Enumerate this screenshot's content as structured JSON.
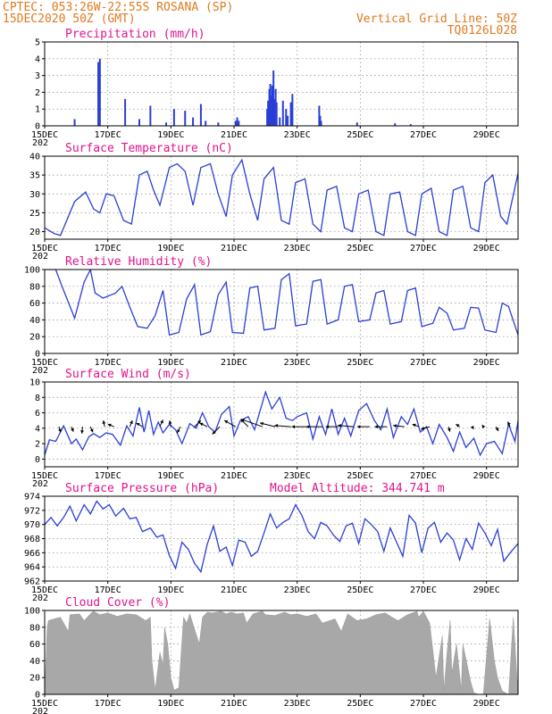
{
  "header": {
    "line1_left": "CPTEC:   053:26W-22:55S   ROSANA (SP)",
    "line2_left": "15DEC2020 50Z (GMT)",
    "line1_right": "Vertical Grid Line: 50Z",
    "line2_right": "TQ0126L028"
  },
  "colors": {
    "header": "#e07a1f",
    "title": "#e0148c",
    "line": "#2a3fd6",
    "cloud": "#a8a8a8"
  },
  "x_axis": {
    "days_total": 15,
    "tick_labels": [
      "15DEC",
      "17DEC",
      "19DEC",
      "21DEC",
      "23DEC",
      "25DEC",
      "27DEC",
      "29DEC"
    ],
    "tick_days": [
      0,
      2,
      4,
      6,
      8,
      10,
      12,
      14
    ],
    "clipped_year_label": "202"
  },
  "chart_data": [
    {
      "id": "precip",
      "type": "bar",
      "title": "Precipitation (mm/h)",
      "ylim": [
        0,
        5
      ],
      "yticks": [
        0,
        1,
        2,
        3,
        4,
        5
      ],
      "bars": [
        {
          "day": 0.95,
          "value": 0.4
        },
        {
          "day": 1.7,
          "value": 3.8
        },
        {
          "day": 1.75,
          "value": 4.0
        },
        {
          "day": 2.55,
          "value": 1.6
        },
        {
          "day": 3.0,
          "value": 0.4
        },
        {
          "day": 3.35,
          "value": 1.2
        },
        {
          "day": 3.85,
          "value": 0.2
        },
        {
          "day": 4.1,
          "value": 1.0
        },
        {
          "day": 4.45,
          "value": 0.9
        },
        {
          "day": 4.7,
          "value": 0.5
        },
        {
          "day": 4.95,
          "value": 1.3
        },
        {
          "day": 5.1,
          "value": 0.3
        },
        {
          "day": 5.5,
          "value": 0.2
        },
        {
          "day": 6.05,
          "value": 0.3
        },
        {
          "day": 6.1,
          "value": 0.5
        },
        {
          "day": 6.15,
          "value": 0.3
        },
        {
          "day": 7.05,
          "value": 1.0
        },
        {
          "day": 7.08,
          "value": 1.5
        },
        {
          "day": 7.12,
          "value": 2.2
        },
        {
          "day": 7.15,
          "value": 2.5
        },
        {
          "day": 7.18,
          "value": 1.8
        },
        {
          "day": 7.21,
          "value": 2.4
        },
        {
          "day": 7.25,
          "value": 3.3
        },
        {
          "day": 7.28,
          "value": 1.6
        },
        {
          "day": 7.32,
          "value": 2.2
        },
        {
          "day": 7.35,
          "value": 1.4
        },
        {
          "day": 7.45,
          "value": 0.5
        },
        {
          "day": 7.55,
          "value": 1.5
        },
        {
          "day": 7.65,
          "value": 1.0
        },
        {
          "day": 7.7,
          "value": 0.6
        },
        {
          "day": 7.8,
          "value": 1.4
        },
        {
          "day": 7.85,
          "value": 1.9
        },
        {
          "day": 8.7,
          "value": 1.2
        },
        {
          "day": 8.73,
          "value": 0.6
        },
        {
          "day": 8.76,
          "value": 0.3
        },
        {
          "day": 9.9,
          "value": 0.2
        },
        {
          "day": 11.1,
          "value": 0.15
        },
        {
          "day": 11.6,
          "value": 0.1
        }
      ]
    },
    {
      "id": "temp",
      "type": "line",
      "title": "Surface Temperature (nC)",
      "ylim": [
        18,
        40
      ],
      "yticks": [
        20,
        25,
        30,
        35,
        40
      ],
      "x": [
        0,
        0.3,
        0.5,
        0.95,
        1.3,
        1.55,
        1.75,
        1.95,
        2.2,
        2.5,
        2.75,
        3.0,
        3.25,
        3.45,
        3.65,
        3.95,
        4.2,
        4.45,
        4.7,
        4.95,
        5.25,
        5.5,
        5.75,
        5.95,
        6.25,
        6.5,
        6.75,
        6.95,
        7.25,
        7.5,
        7.75,
        7.95,
        8.25,
        8.5,
        8.75,
        8.95,
        9.25,
        9.5,
        9.75,
        9.95,
        10.25,
        10.5,
        10.75,
        10.95,
        11.25,
        11.5,
        11.75,
        11.95,
        12.25,
        12.5,
        12.75,
        12.95,
        13.25,
        13.5,
        13.75,
        13.95,
        14.2,
        14.45,
        14.65,
        15.0
      ],
      "y": [
        21,
        19.5,
        19,
        28,
        30.5,
        26,
        25,
        30,
        29.5,
        23,
        22,
        35,
        36,
        31,
        27,
        37,
        38,
        36,
        27,
        37,
        38,
        30,
        24,
        35,
        39,
        30,
        23,
        34,
        37,
        23,
        22,
        33,
        34,
        22,
        20,
        31,
        32,
        21,
        20,
        30,
        31,
        20,
        19,
        30,
        30.5,
        20,
        19,
        30,
        31.5,
        20,
        19,
        31,
        32,
        21,
        20,
        33,
        35,
        24,
        22,
        35.5
      ]
    },
    {
      "id": "rh",
      "type": "line",
      "title": "Relative Humidity (%)",
      "ylim": [
        0,
        100
      ],
      "yticks": [
        0,
        20,
        40,
        60,
        80,
        100
      ],
      "x": [
        0,
        0.35,
        0.55,
        0.95,
        1.25,
        1.45,
        1.6,
        1.85,
        2.25,
        2.45,
        2.7,
        2.95,
        3.25,
        3.5,
        3.75,
        3.95,
        4.25,
        4.5,
        4.75,
        4.95,
        5.25,
        5.5,
        5.75,
        5.95,
        6.3,
        6.5,
        6.75,
        6.95,
        7.3,
        7.5,
        7.75,
        7.95,
        8.3,
        8.5,
        8.75,
        8.95,
        9.3,
        9.5,
        9.75,
        9.95,
        10.3,
        10.5,
        10.75,
        10.95,
        11.3,
        11.5,
        11.75,
        11.95,
        12.3,
        12.5,
        12.75,
        12.95,
        13.3,
        13.5,
        13.75,
        13.95,
        14.3,
        14.5,
        14.7,
        15.0
      ],
      "y": [
        100,
        100,
        80,
        42,
        85,
        100,
        72,
        66,
        72,
        80,
        55,
        32,
        30,
        45,
        75,
        22,
        25,
        65,
        82,
        22,
        26,
        70,
        85,
        25,
        24,
        78,
        80,
        28,
        30,
        88,
        95,
        33,
        35,
        86,
        88,
        35,
        40,
        80,
        82,
        38,
        40,
        72,
        75,
        35,
        38,
        75,
        78,
        32,
        36,
        55,
        48,
        28,
        30,
        55,
        54,
        28,
        25,
        60,
        56,
        22
      ]
    },
    {
      "id": "wind",
      "type": "line",
      "title": "Surface Wind (m/s)",
      "ylim": [
        -1,
        10
      ],
      "yticks": [
        0,
        2,
        4,
        6,
        8,
        10
      ],
      "x": [
        0,
        0.15,
        0.35,
        0.6,
        0.85,
        1.0,
        1.2,
        1.4,
        1.55,
        1.75,
        1.95,
        2.15,
        2.4,
        2.6,
        2.8,
        3.0,
        3.15,
        3.3,
        3.45,
        3.6,
        3.75,
        3.95,
        4.15,
        4.35,
        4.6,
        4.8,
        5.0,
        5.2,
        5.4,
        5.6,
        5.85,
        6.0,
        6.2,
        6.45,
        6.65,
        6.85,
        7.0,
        7.2,
        7.45,
        7.65,
        7.85,
        8.0,
        8.3,
        8.5,
        8.7,
        8.9,
        9.1,
        9.3,
        9.5,
        9.7,
        9.95,
        10.2,
        10.45,
        10.65,
        10.85,
        11.05,
        11.3,
        11.5,
        11.7,
        11.9,
        12.1,
        12.3,
        12.5,
        12.75,
        12.95,
        13.15,
        13.35,
        13.6,
        13.8,
        14.0,
        14.25,
        14.5,
        14.7,
        14.9,
        15.0
      ],
      "y": [
        0.5,
        2.5,
        2.3,
        4.3,
        2.0,
        2.6,
        1.2,
        2.9,
        3.3,
        2.8,
        3.4,
        3.2,
        1.8,
        4.3,
        3.0,
        6.7,
        3.5,
        6.3,
        3.2,
        4.8,
        3.4,
        4.5,
        3.8,
        2.0,
        4.6,
        4.0,
        6.0,
        4.2,
        3.5,
        5.8,
        6.8,
        3.0,
        5.0,
        5.5,
        3.8,
        6.6,
        8.7,
        6.5,
        8.0,
        5.3,
        5.0,
        5.5,
        6.0,
        2.6,
        5.5,
        3.2,
        6.5,
        3.2,
        5.3,
        3.0,
        6.3,
        7.2,
        5.0,
        3.8,
        6.5,
        2.8,
        5.5,
        4.5,
        6.5,
        3.5,
        4.2,
        2.0,
        4.5,
        2.8,
        1.0,
        3.5,
        1.5,
        2.7,
        0.5,
        2.0,
        2.3,
        0.7,
        4.5,
        2.3,
        5.0
      ],
      "arrows": [
        {
          "day": 0.45,
          "u": 0.15,
          "v": -0.45
        },
        {
          "day": 0.85,
          "u": 0.15,
          "v": -0.4
        },
        {
          "day": 1.2,
          "u": -0.05,
          "v": -0.55
        },
        {
          "day": 1.45,
          "u": 0.2,
          "v": -0.45
        },
        {
          "day": 1.9,
          "u": -0.1,
          "v": 0.5
        },
        {
          "day": 2.2,
          "u": -0.5,
          "v": 0.2
        },
        {
          "day": 2.7,
          "u": 0.2,
          "v": 0.5
        },
        {
          "day": 3.1,
          "u": -0.5,
          "v": 0.3
        },
        {
          "day": 3.65,
          "u": 0.25,
          "v": 0.55
        },
        {
          "day": 4.0,
          "u": -0.1,
          "v": 0.5
        },
        {
          "day": 4.3,
          "u": -0.25,
          "v": -0.5
        },
        {
          "day": 4.75,
          "u": 0.5,
          "v": 0.5
        },
        {
          "day": 5.15,
          "u": -0.6,
          "v": 0.3
        },
        {
          "day": 5.55,
          "u": -0.6,
          "v": -0.6
        },
        {
          "day": 6.05,
          "u": -0.9,
          "v": 0.5
        },
        {
          "day": 6.45,
          "u": -0.6,
          "v": 0.6
        },
        {
          "day": 6.9,
          "u": -1.7,
          "v": 0.6
        },
        {
          "day": 7.3,
          "u": -1.2,
          "v": 0.3
        },
        {
          "day": 7.8,
          "u": -1.3,
          "v": 0.1
        },
        {
          "day": 8.3,
          "u": -1.2,
          "v": 0.0
        },
        {
          "day": 8.8,
          "u": -1.3,
          "v": 0.0
        },
        {
          "day": 9.3,
          "u": -1.0,
          "v": 0.0
        },
        {
          "day": 9.8,
          "u": -1.3,
          "v": 0.1
        },
        {
          "day": 10.3,
          "u": -1.0,
          "v": 0.0
        },
        {
          "day": 10.85,
          "u": -1.0,
          "v": 0.0
        },
        {
          "day": 11.4,
          "u": -0.9,
          "v": 0.1
        },
        {
          "day": 11.85,
          "u": -0.5,
          "v": 0.2
        },
        {
          "day": 12.2,
          "u": -0.7,
          "v": -0.2
        },
        {
          "day": 12.8,
          "u": 0.1,
          "v": -0.4
        },
        {
          "day": 13.15,
          "u": -0.3,
          "v": 0.2
        },
        {
          "day": 13.55,
          "u": 0.1,
          "v": -0.2
        },
        {
          "day": 13.9,
          "u": -0.1,
          "v": 0.15
        },
        {
          "day": 14.3,
          "u": 0.2,
          "v": -0.35
        },
        {
          "day": 14.75,
          "u": -0.2,
          "v": 0.4
        }
      ]
    },
    {
      "id": "pres",
      "type": "line",
      "title": "Surface Pressure (hPa)",
      "annotation": "Model Altitude: 344.741 m",
      "ylim": [
        962,
        974
      ],
      "yticks": [
        962,
        964,
        966,
        968,
        970,
        972,
        974
      ],
      "x": [
        0,
        0.2,
        0.4,
        0.6,
        0.8,
        1.0,
        1.25,
        1.45,
        1.65,
        1.85,
        2.05,
        2.25,
        2.5,
        2.7,
        2.9,
        3.1,
        3.35,
        3.55,
        3.75,
        3.95,
        4.15,
        4.35,
        4.55,
        4.75,
        4.95,
        5.15,
        5.35,
        5.55,
        5.75,
        5.95,
        6.15,
        6.35,
        6.55,
        6.75,
        6.95,
        7.15,
        7.35,
        7.55,
        7.75,
        7.95,
        8.15,
        8.35,
        8.55,
        8.75,
        8.95,
        9.15,
        9.35,
        9.55,
        9.75,
        9.95,
        10.15,
        10.35,
        10.55,
        10.75,
        10.95,
        11.15,
        11.35,
        11.55,
        11.75,
        11.95,
        12.15,
        12.35,
        12.55,
        12.75,
        12.95,
        13.15,
        13.35,
        13.55,
        13.75,
        13.95,
        14.15,
        14.35,
        14.55,
        14.75,
        15.0
      ],
      "y": [
        970,
        971,
        969.8,
        971,
        972.6,
        970.5,
        972.8,
        971.5,
        973.3,
        972.2,
        972.8,
        971.2,
        972.3,
        970.8,
        971,
        969,
        969.5,
        968.2,
        968.5,
        965.6,
        963.8,
        967.5,
        966.5,
        964.5,
        963.3,
        967.2,
        969.8,
        966.2,
        966.8,
        964.2,
        967.8,
        967.5,
        965.5,
        966.2,
        968.8,
        971.5,
        969.5,
        970.3,
        970.8,
        972.8,
        971.3,
        969,
        968,
        970.3,
        969.8,
        968.5,
        967.6,
        969.8,
        970.2,
        967.3,
        970.8,
        970,
        969,
        966.2,
        969.5,
        967.5,
        965.5,
        971.3,
        970.2,
        966,
        969.5,
        970.3,
        967.5,
        968.8,
        967.8,
        965,
        968,
        966.5,
        970.2,
        968.8,
        967,
        969.3,
        964.8,
        966,
        967.3
      ]
    },
    {
      "id": "cloud",
      "type": "area",
      "title": "Cloud Cover (%)",
      "ylim": [
        0,
        100
      ],
      "yticks": [
        0,
        20,
        40,
        60,
        80,
        100
      ],
      "x": [
        0,
        0.08,
        0.12,
        0.5,
        0.75,
        0.8,
        1.1,
        1.25,
        1.5,
        1.55,
        1.75,
        2.0,
        2.3,
        2.6,
        2.9,
        3.2,
        3.35,
        3.4,
        3.5,
        3.65,
        3.75,
        3.8,
        3.9,
        4.0,
        4.1,
        4.25,
        4.4,
        4.5,
        4.6,
        4.9,
        5.0,
        5.15,
        5.3,
        5.6,
        5.75,
        5.9,
        6.1,
        6.3,
        6.4,
        6.6,
        6.9,
        7.0,
        7.3,
        7.6,
        7.8,
        8.0,
        8.3,
        8.6,
        8.8,
        9.2,
        9.4,
        9.6,
        9.9,
        10.2,
        10.5,
        10.8,
        11.0,
        11.2,
        11.5,
        11.8,
        11.85,
        12.0,
        12.2,
        12.4,
        12.6,
        12.65,
        12.75,
        12.85,
        12.9,
        13.05,
        13.2,
        13.25,
        13.5,
        13.6,
        13.75,
        13.9,
        14.1,
        14.25,
        14.35,
        14.5,
        14.6,
        14.7,
        14.85,
        15.0
      ],
      "y": [
        0,
        80,
        88,
        92,
        75,
        95,
        96,
        88,
        98,
        99,
        95,
        97,
        93,
        96,
        95,
        88,
        92,
        40,
        5,
        50,
        35,
        80,
        60,
        20,
        5,
        8,
        92,
        85,
        96,
        60,
        92,
        98,
        97,
        99,
        96,
        98,
        96,
        97,
        85,
        96,
        99,
        95,
        94,
        98,
        95,
        96,
        93,
        96,
        85,
        90,
        75,
        96,
        88,
        90,
        95,
        97,
        92,
        88,
        95,
        99,
        92,
        99,
        85,
        20,
        70,
        5,
        50,
        88,
        25,
        60,
        5,
        60,
        15,
        2,
        0,
        0,
        90,
        40,
        20,
        4,
        2,
        0,
        92,
        0
      ]
    }
  ]
}
